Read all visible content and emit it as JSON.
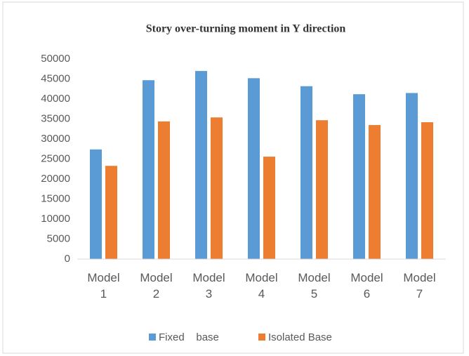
{
  "chart_data": {
    "type": "bar",
    "title": "Story over-turning moment in Y direction",
    "categories": [
      "Model 1",
      "Model 2",
      "Model 3",
      "Model 4",
      "Model 5",
      "Model 6",
      "Model 7"
    ],
    "series": [
      {
        "name": "Fixed    base",
        "color": "#5b9bd5",
        "values": [
          27400,
          44700,
          47000,
          45200,
          43200,
          41200,
          41500
        ]
      },
      {
        "name": "Isolated Base",
        "color": "#ed7d31",
        "values": [
          23300,
          34400,
          35400,
          25600,
          34700,
          33500,
          34200
        ]
      }
    ],
    "ylim": [
      0,
      50000
    ],
    "yticks": [
      0,
      5000,
      10000,
      15000,
      20000,
      25000,
      30000,
      35000,
      40000,
      45000,
      50000
    ],
    "grid": false,
    "legend": "bottom"
  }
}
